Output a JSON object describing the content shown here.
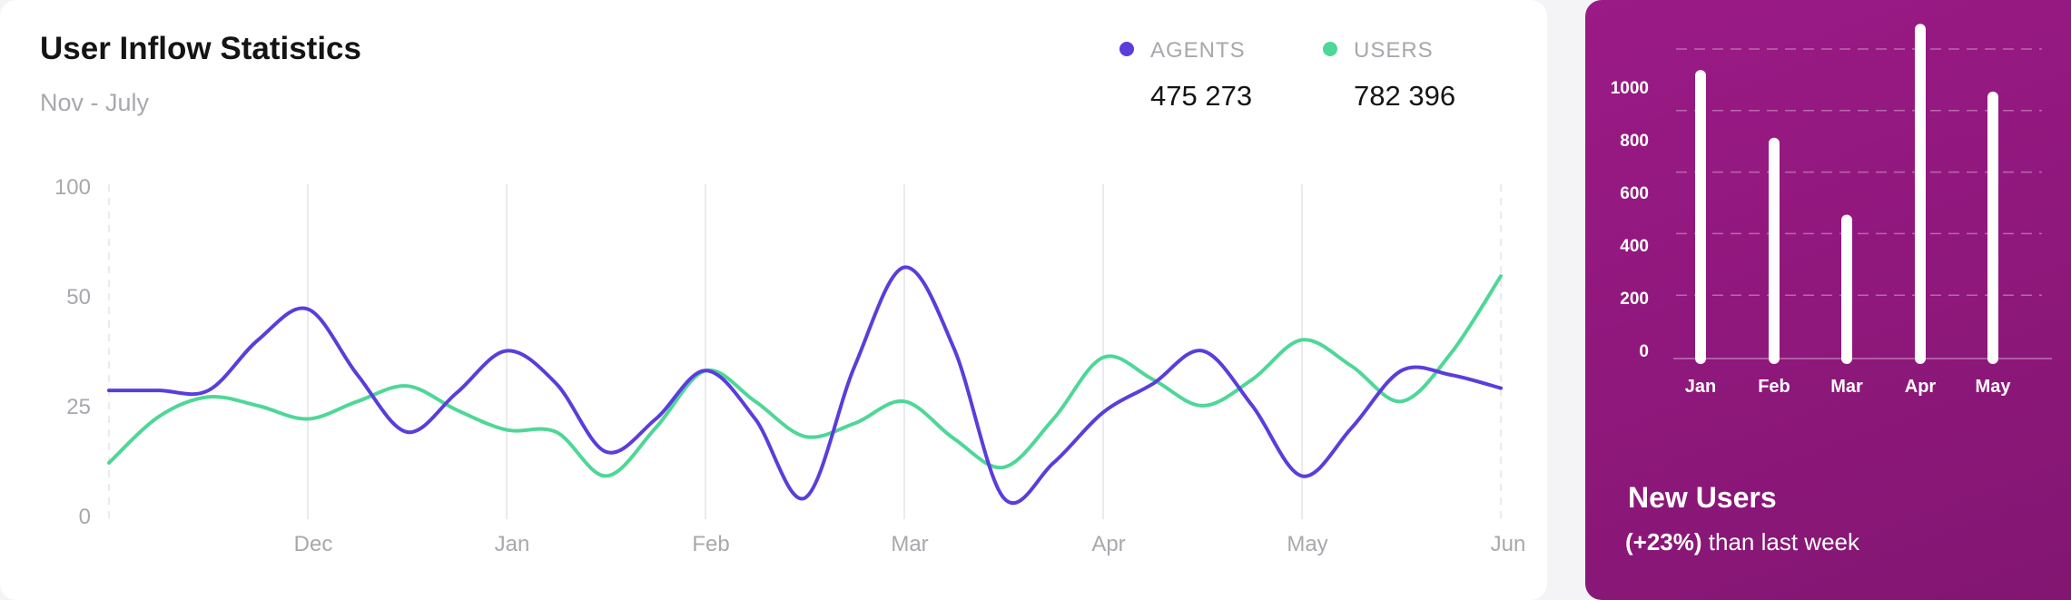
{
  "main_card": {
    "title": "User Inflow Statistics",
    "subtitle": "Nov - July",
    "legend": [
      {
        "label": "AGENTS",
        "value": "475 273",
        "color": "#5b3ddc"
      },
      {
        "label": "USERS",
        "value": "782 396",
        "color": "#4ed797"
      }
    ]
  },
  "side_card": {
    "title": "New Users",
    "change": "(+23%)",
    "note": "than last week"
  },
  "chart_data": [
    {
      "type": "line",
      "title": "User Inflow Statistics",
      "subtitle": "Nov - July",
      "categories": [
        "Dec",
        "Jan",
        "Feb",
        "Mar",
        "Apr",
        "May",
        "Jun"
      ],
      "y_ticks": [
        "0",
        "25",
        "50",
        "100"
      ],
      "legend_position": "top-right",
      "series": [
        {
          "name": "AGENTS",
          "color": "#5b3ddc",
          "x": [
            0,
            0.5,
            1,
            1.5,
            2,
            2.5,
            3,
            3.5,
            4,
            4.5,
            5,
            5.5,
            6,
            6.5,
            7,
            7.5,
            8,
            8.5,
            9,
            9.5,
            10,
            10.5,
            11,
            11.5,
            12,
            12.5,
            13,
            13.5,
            14
          ],
          "y": [
            28.5,
            28.5,
            28.5,
            40,
            47,
            32,
            19,
            28,
            37.5,
            30,
            14.5,
            22,
            33,
            22,
            4,
            34,
            63,
            38,
            4,
            12,
            23.5,
            30,
            37.5,
            25,
            9,
            20,
            33,
            32,
            29
          ]
        },
        {
          "name": "USERS",
          "color": "#4ed797",
          "x": [
            0,
            0.5,
            1,
            1.5,
            2,
            2.5,
            3,
            3.5,
            4,
            4.5,
            5,
            5.5,
            6,
            6.5,
            7,
            7.5,
            8,
            8.5,
            9,
            9.5,
            10,
            10.5,
            11,
            11.5,
            12,
            12.5,
            13,
            13.5,
            14
          ],
          "y": [
            12,
            22.5,
            27,
            25,
            22,
            26,
            29.5,
            24,
            19.5,
            19,
            9,
            20,
            33,
            26,
            18,
            21,
            26,
            17.5,
            11,
            22,
            36,
            31,
            25,
            31,
            40,
            34,
            26,
            37,
            59
          ]
        }
      ]
    },
    {
      "type": "bar",
      "title": "New Users",
      "categories": [
        "Jan",
        "Feb",
        "Mar",
        "Apr",
        "May"
      ],
      "values": [
        920,
        700,
        450,
        1070,
        850
      ],
      "y_ticks": [
        0,
        200,
        400,
        600,
        800,
        1000
      ],
      "grid": true
    }
  ]
}
